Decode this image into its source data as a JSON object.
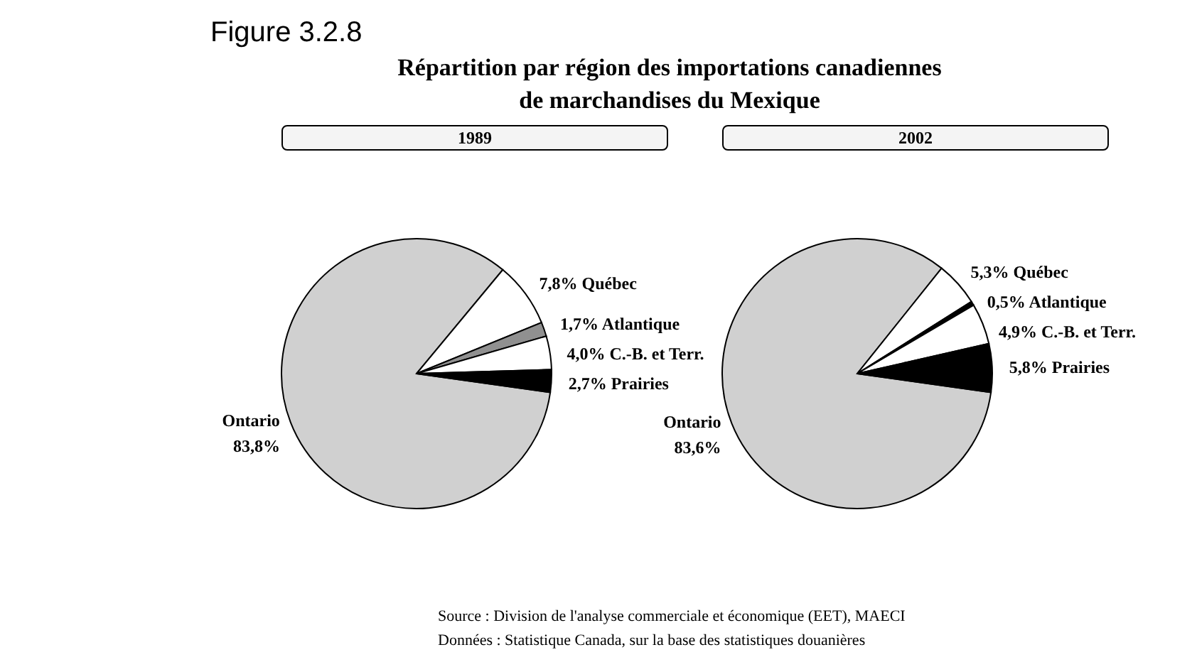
{
  "chart_data": [
    {
      "type": "pie",
      "title": "1989",
      "annotations": [
        "Figure 3.2.8",
        "Répartition par région des importations canadiennes",
        "de marchandises du Mexique"
      ],
      "categories": [
        "Ontario",
        "Québec",
        "Atlantique",
        "C.-B. et Terr.",
        "Prairies"
      ],
      "values": [
        83.8,
        7.8,
        1.7,
        4.0,
        2.7
      ],
      "value_labels": [
        "83,8%",
        "7,8%",
        "1,7%",
        "4,0%",
        "2,7%"
      ],
      "colors": [
        "#d0d0d0",
        "#ffffff",
        "#909090",
        "#ffffff",
        "#000000"
      ],
      "legend": false
    },
    {
      "type": "pie",
      "title": "2002",
      "annotations": [
        "Source : Division de l'analyse commerciale et économique (EET), MAECI",
        "Données : Statistique Canada, sur la base des statistiques douanières"
      ],
      "categories": [
        "Ontario",
        "Québec",
        "Atlantique",
        "C.-B. et Terr.",
        "Prairies"
      ],
      "values": [
        83.6,
        5.3,
        0.5,
        4.9,
        5.8
      ],
      "value_labels": [
        "83,6%",
        "5,3%",
        "0,5%",
        "4,9%",
        "5,8%"
      ],
      "colors": [
        "#d0d0d0",
        "#ffffff",
        "#000000",
        "#ffffff",
        "#000000"
      ],
      "legend": false
    }
  ]
}
